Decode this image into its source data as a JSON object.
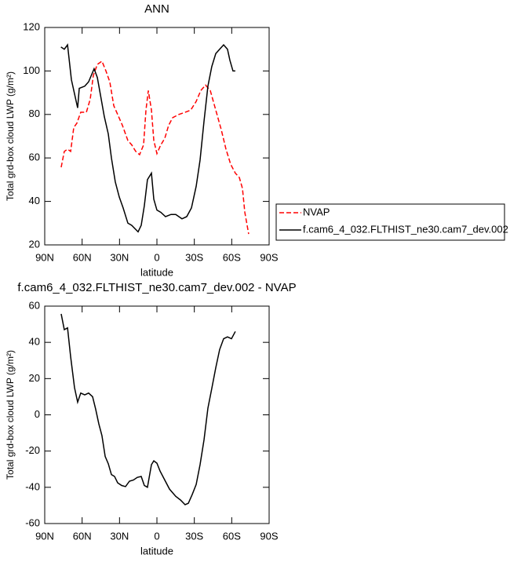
{
  "chart_data": [
    {
      "type": "line",
      "title": "ANN",
      "x_label": "latitude",
      "y_label": "Total grd-box cloud LWP (g/m²)",
      "xlim": [
        90,
        -90
      ],
      "xticks": [
        {
          "value": 90,
          "label": "90N"
        },
        {
          "value": 60,
          "label": "60N"
        },
        {
          "value": 30,
          "label": "30N"
        },
        0,
        {
          "value": -30,
          "label": "30S"
        },
        {
          "value": -60,
          "label": "60S"
        },
        {
          "value": -90,
          "label": "90S"
        }
      ],
      "ylim": [
        20,
        120
      ],
      "yticks": [
        20,
        40,
        60,
        80,
        100,
        120
      ],
      "legend": "outside-right",
      "series": [
        {
          "name": "NVAP",
          "color": "#ff0000",
          "dashed": true,
          "x": [
            76.8,
            74.3,
            71.7,
            69.2,
            66.7,
            64.2,
            61.1,
            56.6,
            53.5,
            51.0,
            47.8,
            44.1,
            40.9,
            37.8,
            34.6,
            31.5,
            27.7,
            23.3,
            20.2,
            17.0,
            13.9,
            10.7,
            8.8,
            6.9,
            4.4,
            2.5,
            0,
            -3.1,
            -6.3,
            -9.4,
            -12.6,
            -17.6,
            -22.6,
            -27.1,
            -31.5,
            -35.2,
            -39.0,
            -42.8,
            -47.2,
            -51.6,
            -55.4,
            -59.2,
            -62.9,
            -66.1,
            -68.6,
            -70.5,
            -73.6
          ],
          "values": [
            55.7,
            63,
            64,
            63,
            74,
            76,
            81,
            81,
            87,
            98,
            103,
            104.5,
            100,
            95,
            84,
            80,
            75,
            68,
            66,
            63,
            61.5,
            66,
            82,
            91,
            82,
            68,
            62,
            66,
            69,
            75,
            78.5,
            80,
            81,
            82,
            86,
            91,
            93.5,
            91,
            82,
            73,
            64,
            57,
            53,
            51,
            46,
            35,
            25
          ]
        },
        {
          "name": "f.cam6_4_032.FLTHIST_ne30.cam7_dev.002",
          "color": "#000000",
          "dashed": false,
          "x": [
            77,
            74.3,
            71.7,
            68.6,
            63.6,
            62.3,
            57.9,
            54.8,
            50.4,
            47.8,
            45.3,
            42.2,
            39,
            36.5,
            33.4,
            30.2,
            27.1,
            23.3,
            20.2,
            15.1,
            12.6,
            10.1,
            7.6,
            4.4,
            2.5,
            0,
            -3.1,
            -6.9,
            -11.3,
            -15.1,
            -20.1,
            -23.9,
            -27.7,
            -31.5,
            -34.6,
            -37.8,
            -40.9,
            -44,
            -47.2,
            -50.3,
            -53.5,
            -56.6,
            -58.5,
            -61,
            -62.9
          ],
          "values": [
            111,
            110,
            112,
            96,
            83,
            92,
            93,
            95,
            101,
            97,
            89,
            79,
            71,
            60,
            49,
            42,
            37,
            30,
            29,
            26,
            29,
            38,
            50,
            53,
            41,
            36,
            35,
            33,
            34,
            34,
            32,
            33,
            37,
            47,
            59,
            77,
            93,
            102,
            108,
            110,
            112,
            110,
            105,
            100,
            100
          ]
        }
      ]
    },
    {
      "type": "line",
      "title": "f.cam6_4_032.FLTHIST_ne30.cam7_dev.002 - NVAP",
      "x_label": "latitude",
      "y_label": "Total grd-box cloud LWP (g/m²)",
      "xlim": [
        90,
        -90
      ],
      "xticks": [
        {
          "value": 90,
          "label": "90N"
        },
        {
          "value": 60,
          "label": "60N"
        },
        {
          "value": 30,
          "label": "30N"
        },
        0,
        {
          "value": -30,
          "label": "30S"
        },
        {
          "value": -60,
          "label": "60S"
        },
        {
          "value": -90,
          "label": "90S"
        }
      ],
      "ylim": [
        -60,
        60
      ],
      "yticks": [
        -60,
        -40,
        -20,
        0,
        20,
        40,
        60
      ],
      "series": [
        {
          "color": "#000000",
          "dashed": false,
          "x": [
            76.8,
            74.3,
            71.7,
            69.2,
            66.1,
            63.6,
            61.1,
            57.9,
            54.8,
            51.6,
            49.1,
            46.6,
            44.1,
            41.5,
            39.0,
            36.5,
            34.0,
            31.5,
            28.3,
            25.2,
            22.0,
            18.9,
            15.7,
            12.6,
            10.1,
            7.6,
            4.4,
            2.5,
            0,
            -2.5,
            -6.3,
            -10.1,
            -15.1,
            -18.9,
            -22.6,
            -25.2,
            -28.3,
            -31.5,
            -34.6,
            -37.8,
            -40.9,
            -44.0,
            -47.2,
            -50.3,
            -53.5,
            -56.6,
            -59.8,
            -62.9
          ],
          "values": [
            55.7,
            47,
            48,
            32,
            15,
            7,
            12,
            11,
            12,
            10,
            3,
            -5,
            -11.5,
            -23,
            -27,
            -33,
            -34,
            -37.5,
            -39,
            -39.6,
            -36.6,
            -36,
            -34.5,
            -34,
            -39,
            -40,
            -27.5,
            -25.4,
            -26.7,
            -31,
            -36,
            -41,
            -45,
            -47,
            -49.6,
            -48.8,
            -44,
            -38.4,
            -27.5,
            -13.7,
            3.7,
            14.5,
            26,
            36,
            42,
            43,
            42,
            46
          ]
        }
      ]
    }
  ]
}
